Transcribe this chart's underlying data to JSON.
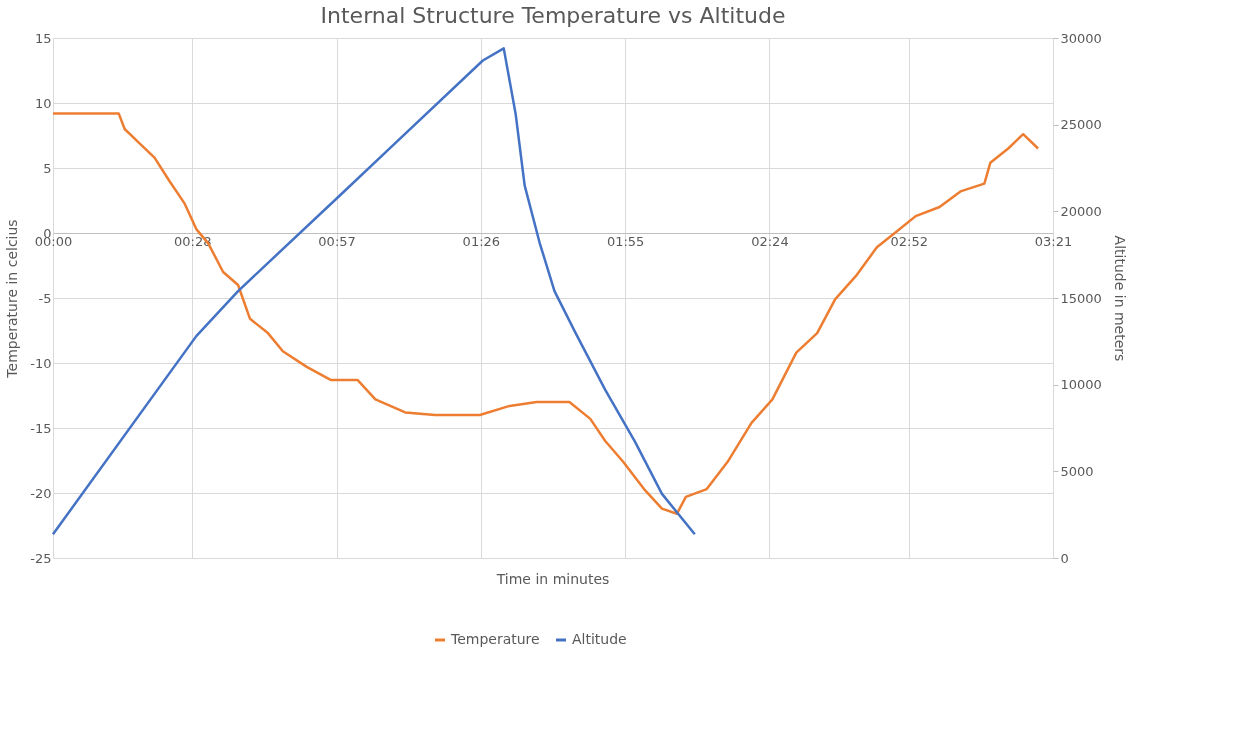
{
  "chart_data": {
    "type": "line",
    "title": "Internal Structure Temperature vs Altitude",
    "xlabel": "Time in minutes",
    "ylabel": "Temperature  in celcius",
    "y2label": "Altitude in meters",
    "xlim": [
      0,
      3.35
    ],
    "xticks": [
      {
        "value": 0,
        "label": "00:00"
      },
      {
        "value": 0.4667,
        "label": "00:28"
      },
      {
        "value": 0.95,
        "label": "00:57"
      },
      {
        "value": 1.4333,
        "label": "01:26"
      },
      {
        "value": 1.9167,
        "label": "01:55"
      },
      {
        "value": 2.4,
        "label": "02:24"
      },
      {
        "value": 2.8667,
        "label": "02:52"
      },
      {
        "value": 3.35,
        "label": "03:21"
      }
    ],
    "ylim": [
      -25,
      15
    ],
    "yticks": [
      -25,
      -20,
      -15,
      -10,
      -5,
      0,
      5,
      10,
      15
    ],
    "y2lim": [
      0,
      30000
    ],
    "y2ticks": [
      0,
      5000,
      10000,
      15000,
      20000,
      25000,
      30000
    ],
    "grid": true,
    "legend": "bottom",
    "marker": "none",
    "line_style": "solid",
    "series": [
      {
        "name": "Temperature",
        "color": "#ed7d31",
        "x": [
          0,
          0.22,
          0.24,
          0.29,
          0.34,
          0.39,
          0.44,
          0.48,
          0.52,
          0.57,
          0.62,
          0.66,
          0.72,
          0.77,
          0.85,
          0.93,
          1.02,
          1.08,
          1.18,
          1.28,
          1.43,
          1.53,
          1.62,
          1.73,
          1.8,
          1.85,
          1.91,
          1.98,
          2.04,
          2.09,
          2.12,
          2.19,
          2.26,
          2.34,
          2.41,
          2.49,
          2.56,
          2.62,
          2.69,
          2.76,
          2.82,
          2.89,
          2.97,
          3.04,
          3.12,
          3.14,
          3.2,
          3.25,
          3.3
        ],
        "values": [
          9.2,
          9.2,
          8,
          6.9,
          5.8,
          4,
          2.3,
          0.3,
          -0.8,
          -3,
          -4,
          -6.6,
          -7.7,
          -9.1,
          -10.3,
          -11.3,
          -11.3,
          -12.8,
          -13.8,
          -14,
          -14,
          -13.3,
          -13,
          -13,
          -14.3,
          -16,
          -17.6,
          -19.7,
          -21.2,
          -21.6,
          -20.3,
          -19.7,
          -17.6,
          -14.6,
          -12.8,
          -9.2,
          -7.7,
          -5.1,
          -3.3,
          -1.1,
          0,
          1.3,
          2,
          3.2,
          3.8,
          5.4,
          6.5,
          7.6,
          6.5
        ]
      },
      {
        "name": "Altitude",
        "color": "#4472c4",
        "axis": "y2",
        "x": [
          0,
          0.48,
          0.62,
          0.96,
          1.12,
          1.44,
          1.51,
          1.55,
          1.58,
          1.63,
          1.68,
          1.75,
          1.85,
          1.95,
          2.04,
          2.15
        ],
        "values": [
          1370,
          12800,
          15400,
          20900,
          23500,
          28700,
          29400,
          25600,
          21500,
          18200,
          15400,
          13000,
          9700,
          6700,
          3700,
          1370
        ]
      }
    ]
  }
}
